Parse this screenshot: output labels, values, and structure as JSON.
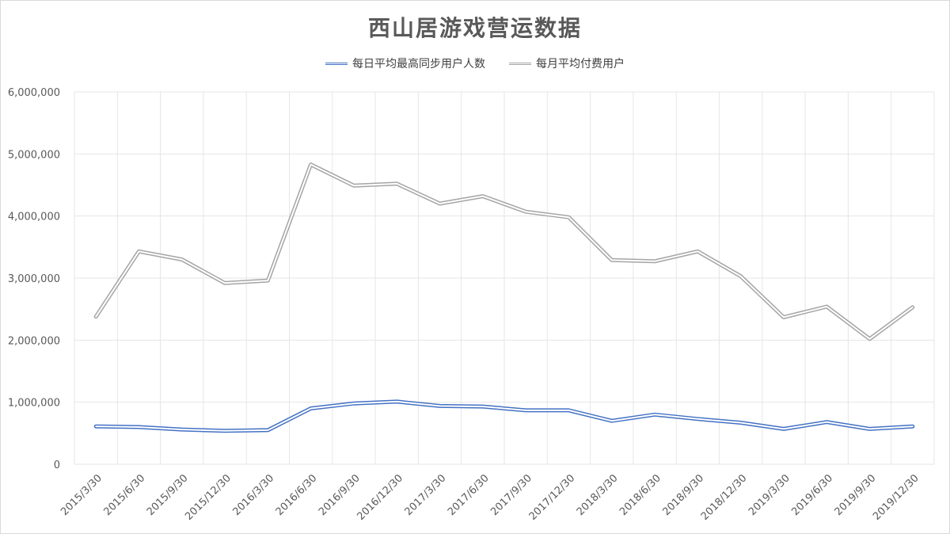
{
  "chart_data": {
    "type": "line",
    "title": "西山居游戏营运数据",
    "xlabel": "",
    "ylabel": "",
    "ylim": [
      0,
      6000000
    ],
    "yticks": [
      "0",
      "1,000,000",
      "2,000,000",
      "3,000,000",
      "4,000,000",
      "5,000,000",
      "6,000,000"
    ],
    "grid": true,
    "legend_position": "top",
    "categories": [
      "2015/3/30",
      "2015/6/30",
      "2015/9/30",
      "2015/12/30",
      "2016/3/30",
      "2016/6/30",
      "2016/9/30",
      "2016/12/30",
      "2017/3/30",
      "2017/6/30",
      "2017/9/30",
      "2017/12/30",
      "2018/3/30",
      "2018/6/30",
      "2018/9/30",
      "2018/12/30",
      "2019/3/30",
      "2019/6/30",
      "2019/9/30",
      "2019/12/30"
    ],
    "series": [
      {
        "name": "每日平均最高同步用户人数",
        "color": "#4472c4",
        "values": [
          610000,
          600000,
          560000,
          540000,
          550000,
          900000,
          980000,
          1010000,
          940000,
          930000,
          870000,
          870000,
          700000,
          800000,
          730000,
          670000,
          570000,
          680000,
          570000,
          610000
        ]
      },
      {
        "name": "每月平均付费用户",
        "color": "#a5a5a5",
        "values": [
          2380000,
          3430000,
          3300000,
          2920000,
          2960000,
          4830000,
          4490000,
          4520000,
          4200000,
          4320000,
          4070000,
          3980000,
          3290000,
          3270000,
          3430000,
          3030000,
          2370000,
          2540000,
          2020000,
          2530000
        ]
      }
    ]
  }
}
